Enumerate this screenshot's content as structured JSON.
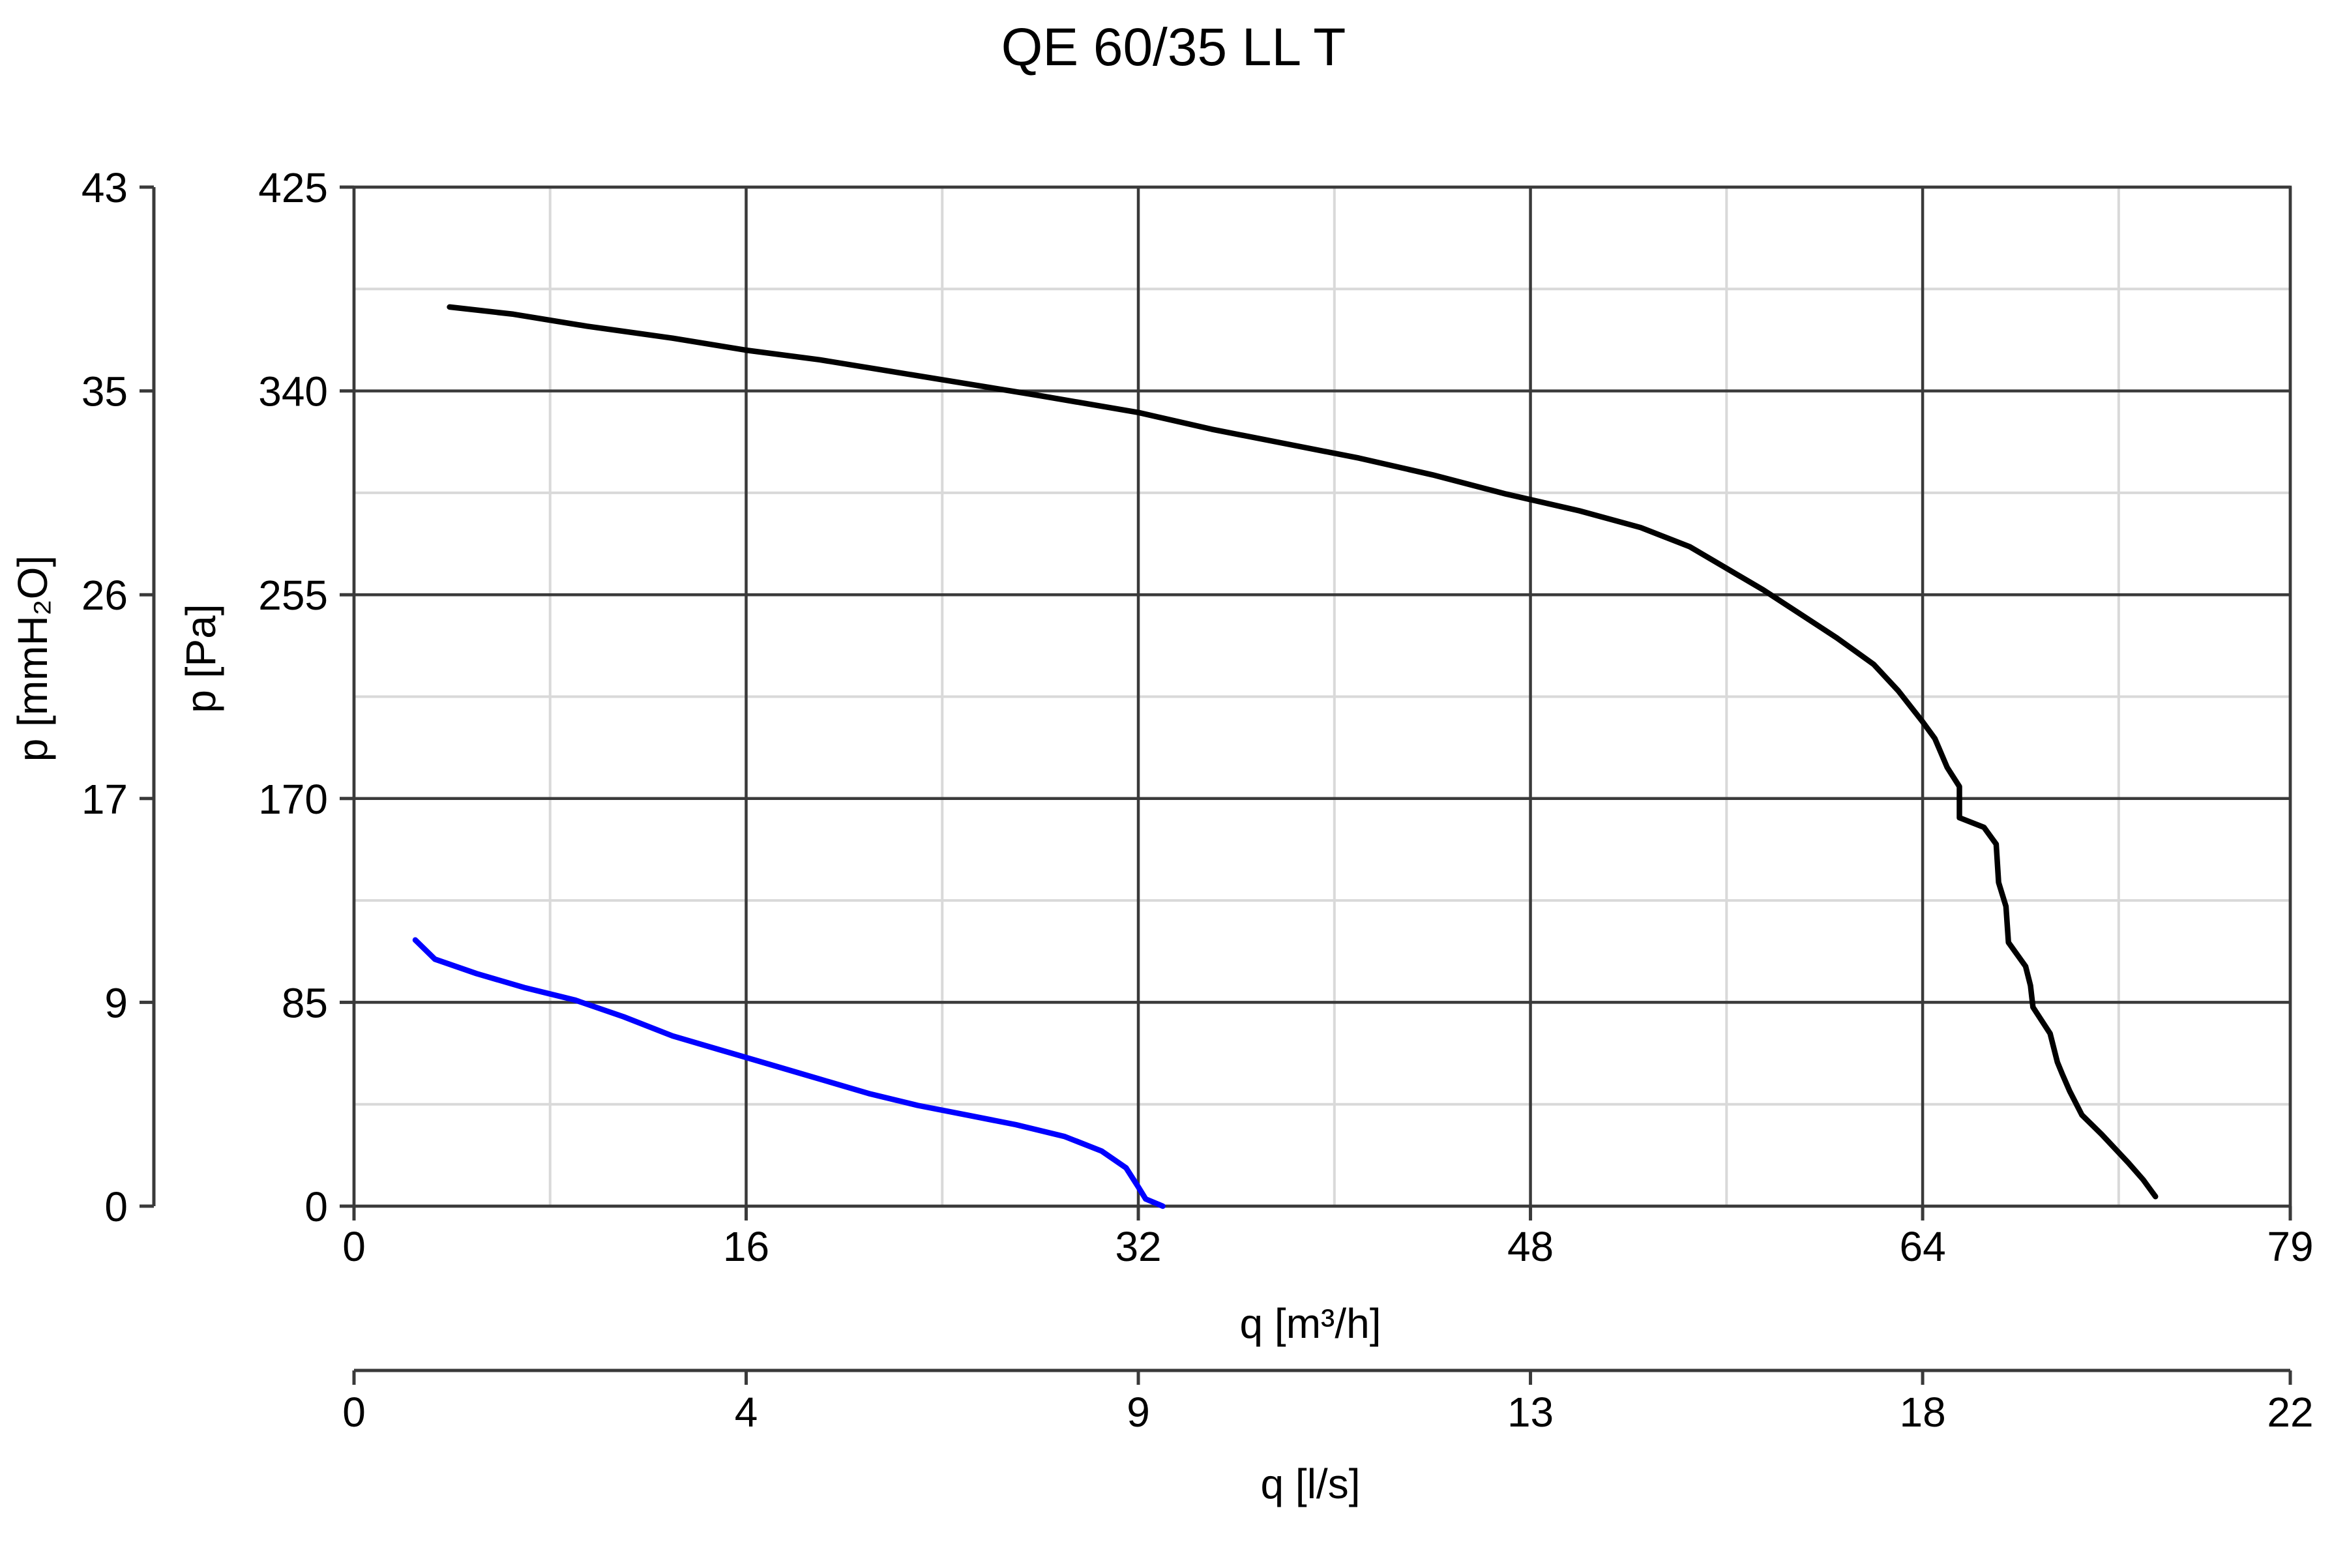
{
  "chart_data": {
    "type": "line",
    "title": "QE 60/35 LL T",
    "x_axis": {
      "label": "q [m³/h]",
      "range": [
        0,
        79
      ],
      "major_ticks": [
        0,
        16,
        32,
        48,
        64,
        79
      ],
      "minor_ticks": [
        8,
        24,
        40,
        56,
        72
      ]
    },
    "x_axis_secondary": {
      "label": "q [l/s]",
      "tick_labels": [
        "0",
        "4",
        "9",
        "13",
        "18",
        "22"
      ]
    },
    "y_axis": {
      "label": "p [Pa]",
      "range": [
        0,
        425
      ],
      "major_ticks": [
        0,
        85,
        170,
        255,
        340,
        425
      ],
      "minor_ticks": [
        42.5,
        127.5,
        212.5,
        297.5,
        382.5
      ]
    },
    "y_axis_secondary": {
      "label": "p [mmH₂O]",
      "tick_labels": [
        "0",
        "9",
        "17",
        "26",
        "35",
        "43"
      ]
    },
    "grid": true,
    "series": [
      {
        "color": "#000000",
        "points": [
          [
            3.9,
            375
          ],
          [
            6.5,
            372
          ],
          [
            9.5,
            367
          ],
          [
            13,
            362
          ],
          [
            16,
            357
          ],
          [
            19,
            353
          ],
          [
            22,
            348
          ],
          [
            25,
            343
          ],
          [
            28,
            338
          ],
          [
            32,
            331
          ],
          [
            35,
            324
          ],
          [
            38,
            318
          ],
          [
            41,
            312
          ],
          [
            44,
            305
          ],
          [
            47,
            297
          ],
          [
            50,
            290
          ],
          [
            52.5,
            283
          ],
          [
            54.5,
            275
          ],
          [
            56,
            266
          ],
          [
            57.5,
            257
          ],
          [
            59,
            247
          ],
          [
            60.5,
            237
          ],
          [
            62,
            226
          ],
          [
            63,
            215
          ],
          [
            64,
            202
          ],
          [
            64.5,
            195
          ],
          [
            65,
            183
          ],
          [
            65.5,
            175
          ],
          [
            65.5,
            162
          ],
          [
            66.5,
            158
          ],
          [
            67,
            151
          ],
          [
            67.1,
            135
          ],
          [
            67.4,
            125
          ],
          [
            67.5,
            110
          ],
          [
            68.2,
            100
          ],
          [
            68.4,
            92
          ],
          [
            68.5,
            83
          ],
          [
            69.2,
            72
          ],
          [
            69.5,
            60
          ],
          [
            69.7,
            55
          ],
          [
            70,
            48
          ],
          [
            70.5,
            38
          ],
          [
            71.3,
            30
          ],
          [
            72.4,
            18
          ],
          [
            73,
            11
          ],
          [
            73.5,
            4
          ]
        ]
      },
      {
        "color": "#0000ff",
        "points": [
          [
            2.5,
            111
          ],
          [
            3.3,
            103
          ],
          [
            5,
            97
          ],
          [
            7,
            91
          ],
          [
            9,
            86
          ],
          [
            11,
            79
          ],
          [
            13,
            71
          ],
          [
            15,
            65
          ],
          [
            17,
            59
          ],
          [
            19,
            53
          ],
          [
            21,
            47
          ],
          [
            23,
            42
          ],
          [
            25,
            38
          ],
          [
            27,
            34
          ],
          [
            29,
            29
          ],
          [
            30.5,
            23
          ],
          [
            31.5,
            16
          ],
          [
            32,
            8
          ],
          [
            32.3,
            3
          ],
          [
            33,
            0
          ]
        ]
      }
    ]
  }
}
